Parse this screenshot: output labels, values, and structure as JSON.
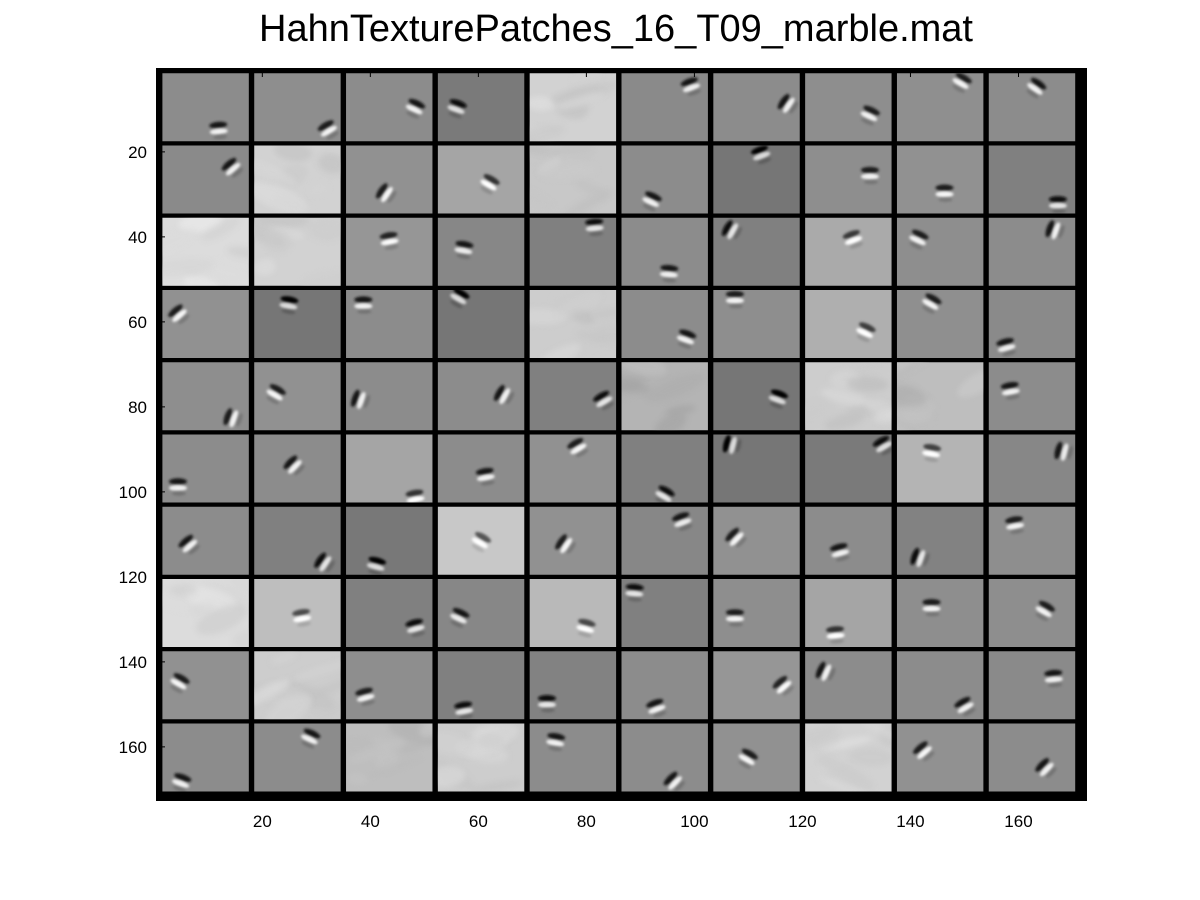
{
  "title": "HahnTexturePatches_16_T09_marble.mat",
  "chart_data": {
    "type": "heatmap",
    "title": "HahnTexturePatches_16_T09_marble.mat",
    "xlabel": "",
    "ylabel": "",
    "xlim": [
      0.5,
      172.5
    ],
    "ylim": [
      0.5,
      172.5
    ],
    "y_reversed": true,
    "x_ticks": [
      20,
      40,
      60,
      80,
      100,
      120,
      140,
      160
    ],
    "y_ticks": [
      20,
      40,
      60,
      80,
      100,
      120,
      140,
      160
    ],
    "colormap": "gray",
    "grid": {
      "rows": 10,
      "cols": 10,
      "patch_size": 16,
      "separator_px": 1,
      "separator_color": "#000000"
    },
    "patches": [
      [
        {
          "bg": 140,
          "kind": "blob",
          "x": 0.65,
          "y": 0.82,
          "angle": -5
        },
        {
          "bg": 142,
          "kind": "blob",
          "x": 0.85,
          "y": 0.82,
          "angle": -30
        },
        {
          "bg": 140,
          "kind": "blob",
          "x": 0.8,
          "y": 0.5,
          "angle": 25
        },
        {
          "bg": 122,
          "kind": "blob",
          "x": 0.22,
          "y": 0.5,
          "angle": 20
        },
        {
          "bg": 210,
          "kind": "texture",
          "x": 0.5,
          "y": 0.5,
          "angle": 0
        },
        {
          "bg": 138,
          "kind": "blob",
          "x": 0.8,
          "y": 0.18,
          "angle": -20
        },
        {
          "bg": 140,
          "kind": "blob",
          "x": 0.85,
          "y": 0.45,
          "angle": -55
        },
        {
          "bg": 142,
          "kind": "blob",
          "x": 0.75,
          "y": 0.6,
          "angle": 25
        },
        {
          "bg": 143,
          "kind": "blob",
          "x": 0.75,
          "y": 0.12,
          "angle": 30
        },
        {
          "bg": 140,
          "kind": "blob",
          "x": 0.55,
          "y": 0.2,
          "angle": 35
        }
      ],
      [
        {
          "bg": 138,
          "kind": "blob",
          "x": 0.8,
          "y": 0.32,
          "angle": -40
        },
        {
          "bg": 210,
          "kind": "texture",
          "x": 0.5,
          "y": 0.5,
          "angle": 0
        },
        {
          "bg": 145,
          "kind": "blob",
          "x": 0.45,
          "y": 0.7,
          "angle": -55
        },
        {
          "bg": 165,
          "kind": "blob",
          "x": 0.6,
          "y": 0.55,
          "angle": 30
        },
        {
          "bg": 200,
          "kind": "texture",
          "x": 0.5,
          "y": 0.5,
          "angle": 0
        },
        {
          "bg": 140,
          "kind": "blob",
          "x": 0.35,
          "y": 0.8,
          "angle": 25
        },
        {
          "bg": 118,
          "kind": "blob",
          "x": 0.55,
          "y": 0.12,
          "angle": -20
        },
        {
          "bg": 142,
          "kind": "blob",
          "x": 0.75,
          "y": 0.42,
          "angle": 0
        },
        {
          "bg": 145,
          "kind": "blob",
          "x": 0.55,
          "y": 0.68,
          "angle": 0
        },
        {
          "bg": 128,
          "kind": "blob",
          "x": 0.8,
          "y": 0.85,
          "angle": 0
        }
      ],
      [
        {
          "bg": 220,
          "kind": "texture",
          "x": 0.5,
          "y": 0.5,
          "angle": 0
        },
        {
          "bg": 210,
          "kind": "texture",
          "x": 0.5,
          "y": 0.5,
          "angle": 0
        },
        {
          "bg": 150,
          "kind": "blob",
          "x": 0.5,
          "y": 0.32,
          "angle": -10
        },
        {
          "bg": 135,
          "kind": "blob",
          "x": 0.3,
          "y": 0.45,
          "angle": 10
        },
        {
          "bg": 128,
          "kind": "blob",
          "x": 0.75,
          "y": 0.12,
          "angle": -5
        },
        {
          "bg": 140,
          "kind": "blob",
          "x": 0.55,
          "y": 0.8,
          "angle": 5
        },
        {
          "bg": 128,
          "kind": "blob",
          "x": 0.2,
          "y": 0.18,
          "angle": -60
        },
        {
          "bg": 170,
          "kind": "blob",
          "x": 0.55,
          "y": 0.3,
          "angle": -20
        },
        {
          "bg": 142,
          "kind": "blob",
          "x": 0.25,
          "y": 0.3,
          "angle": 25
        },
        {
          "bg": 140,
          "kind": "blob",
          "x": 0.75,
          "y": 0.18,
          "angle": -70
        }
      ],
      [
        {
          "bg": 145,
          "kind": "blob",
          "x": 0.18,
          "y": 0.35,
          "angle": -40
        },
        {
          "bg": 118,
          "kind": "blob",
          "x": 0.4,
          "y": 0.2,
          "angle": 10
        },
        {
          "bg": 140,
          "kind": "blob",
          "x": 0.2,
          "y": 0.2,
          "angle": 0
        },
        {
          "bg": 118,
          "kind": "blob",
          "x": 0.25,
          "y": 0.1,
          "angle": 30
        },
        {
          "bg": 205,
          "kind": "texture",
          "x": 0.5,
          "y": 0.5,
          "angle": 0
        },
        {
          "bg": 140,
          "kind": "blob",
          "x": 0.75,
          "y": 0.7,
          "angle": 20
        },
        {
          "bg": 142,
          "kind": "blob",
          "x": 0.25,
          "y": 0.12,
          "angle": 0
        },
        {
          "bg": 175,
          "kind": "blob",
          "x": 0.7,
          "y": 0.6,
          "angle": 25
        },
        {
          "bg": 143,
          "kind": "blob",
          "x": 0.4,
          "y": 0.18,
          "angle": 30
        },
        {
          "bg": 138,
          "kind": "blob",
          "x": 0.2,
          "y": 0.82,
          "angle": -15
        }
      ],
      [
        {
          "bg": 142,
          "kind": "blob",
          "x": 0.8,
          "y": 0.82,
          "angle": -70
        },
        {
          "bg": 145,
          "kind": "blob",
          "x": 0.25,
          "y": 0.45,
          "angle": 30
        },
        {
          "bg": 140,
          "kind": "blob",
          "x": 0.15,
          "y": 0.55,
          "angle": -70
        },
        {
          "bg": 140,
          "kind": "blob",
          "x": 0.75,
          "y": 0.48,
          "angle": -60
        },
        {
          "bg": 128,
          "kind": "blob",
          "x": 0.85,
          "y": 0.55,
          "angle": -30
        },
        {
          "bg": 180,
          "kind": "texture",
          "x": 0.5,
          "y": 0.5,
          "angle": -60
        },
        {
          "bg": 118,
          "kind": "blob",
          "x": 0.75,
          "y": 0.52,
          "angle": 20
        },
        {
          "bg": 205,
          "kind": "texture",
          "x": 0.5,
          "y": 0.5,
          "angle": 0
        },
        {
          "bg": 190,
          "kind": "texture",
          "x": 0.5,
          "y": 0.5,
          "angle": 0
        },
        {
          "bg": 140,
          "kind": "blob",
          "x": 0.25,
          "y": 0.4,
          "angle": -10
        }
      ],
      [
        {
          "bg": 140,
          "kind": "blob",
          "x": 0.18,
          "y": 0.75,
          "angle": 0
        },
        {
          "bg": 140,
          "kind": "blob",
          "x": 0.45,
          "y": 0.45,
          "angle": -45
        },
        {
          "bg": 165,
          "kind": "blob",
          "x": 0.8,
          "y": 0.92,
          "angle": -10
        },
        {
          "bg": 140,
          "kind": "blob",
          "x": 0.55,
          "y": 0.6,
          "angle": -10
        },
        {
          "bg": 145,
          "kind": "blob",
          "x": 0.55,
          "y": 0.18,
          "angle": -30
        },
        {
          "bg": 128,
          "kind": "blob",
          "x": 0.5,
          "y": 0.88,
          "angle": 30
        },
        {
          "bg": 118,
          "kind": "blob",
          "x": 0.2,
          "y": 0.15,
          "angle": -75
        },
        {
          "bg": 122,
          "kind": "blob",
          "x": 0.9,
          "y": 0.15,
          "angle": -30
        },
        {
          "bg": 180,
          "kind": "blob",
          "x": 0.4,
          "y": 0.25,
          "angle": 10
        },
        {
          "bg": 135,
          "kind": "blob",
          "x": 0.85,
          "y": 0.25,
          "angle": -75
        }
      ],
      [
        {
          "bg": 140,
          "kind": "blob",
          "x": 0.3,
          "y": 0.55,
          "angle": -40
        },
        {
          "bg": 128,
          "kind": "blob",
          "x": 0.8,
          "y": 0.82,
          "angle": -55
        },
        {
          "bg": 120,
          "kind": "blob",
          "x": 0.35,
          "y": 0.85,
          "angle": 15
        },
        {
          "bg": 200,
          "kind": "blob",
          "x": 0.5,
          "y": 0.5,
          "angle": 30
        },
        {
          "bg": 145,
          "kind": "blob",
          "x": 0.4,
          "y": 0.55,
          "angle": -55
        },
        {
          "bg": 135,
          "kind": "blob",
          "x": 0.7,
          "y": 0.2,
          "angle": -20
        },
        {
          "bg": 145,
          "kind": "blob",
          "x": 0.25,
          "y": 0.45,
          "angle": -45
        },
        {
          "bg": 140,
          "kind": "blob",
          "x": 0.4,
          "y": 0.65,
          "angle": -15
        },
        {
          "bg": 130,
          "kind": "blob",
          "x": 0.25,
          "y": 0.75,
          "angle": -70
        },
        {
          "bg": 142,
          "kind": "blob",
          "x": 0.3,
          "y": 0.25,
          "angle": -10
        }
      ],
      [
        {
          "bg": 220,
          "kind": "texture",
          "x": 0.5,
          "y": 0.5,
          "angle": 0
        },
        {
          "bg": 190,
          "kind": "blob",
          "x": 0.55,
          "y": 0.55,
          "angle": -10
        },
        {
          "bg": 128,
          "kind": "blob",
          "x": 0.8,
          "y": 0.7,
          "angle": -15
        },
        {
          "bg": 135,
          "kind": "blob",
          "x": 0.25,
          "y": 0.55,
          "angle": 25
        },
        {
          "bg": 185,
          "kind": "blob",
          "x": 0.65,
          "y": 0.7,
          "angle": 15
        },
        {
          "bg": 128,
          "kind": "blob",
          "x": 0.15,
          "y": 0.18,
          "angle": 5
        },
        {
          "bg": 142,
          "kind": "blob",
          "x": 0.25,
          "y": 0.55,
          "angle": 0
        },
        {
          "bg": 165,
          "kind": "blob",
          "x": 0.35,
          "y": 0.8,
          "angle": -5
        },
        {
          "bg": 142,
          "kind": "blob",
          "x": 0.4,
          "y": 0.4,
          "angle": 0
        },
        {
          "bg": 142,
          "kind": "blob",
          "x": 0.65,
          "y": 0.45,
          "angle": 30
        }
      ],
      [
        {
          "bg": 145,
          "kind": "blob",
          "x": 0.2,
          "y": 0.45,
          "angle": 30
        },
        {
          "bg": 205,
          "kind": "texture",
          "x": 0.5,
          "y": 0.5,
          "angle": 0
        },
        {
          "bg": 142,
          "kind": "blob",
          "x": 0.22,
          "y": 0.65,
          "angle": -15
        },
        {
          "bg": 128,
          "kind": "blob",
          "x": 0.3,
          "y": 0.85,
          "angle": -10
        },
        {
          "bg": 130,
          "kind": "blob",
          "x": 0.2,
          "y": 0.75,
          "angle": 0
        },
        {
          "bg": 140,
          "kind": "blob",
          "x": 0.4,
          "y": 0.82,
          "angle": -20
        },
        {
          "bg": 150,
          "kind": "blob",
          "x": 0.8,
          "y": 0.5,
          "angle": -40
        },
        {
          "bg": 140,
          "kind": "blob",
          "x": 0.22,
          "y": 0.3,
          "angle": -65
        },
        {
          "bg": 140,
          "kind": "blob",
          "x": 0.78,
          "y": 0.8,
          "angle": -30
        },
        {
          "bg": 138,
          "kind": "blob",
          "x": 0.75,
          "y": 0.38,
          "angle": -5
        }
      ],
      [
        {
          "bg": 140,
          "kind": "blob",
          "x": 0.22,
          "y": 0.85,
          "angle": 20
        },
        {
          "bg": 140,
          "kind": "blob",
          "x": 0.65,
          "y": 0.2,
          "angle": 25
        },
        {
          "bg": 190,
          "kind": "texture",
          "x": 0.5,
          "y": 0.5,
          "angle": 0
        },
        {
          "bg": 205,
          "kind": "texture",
          "x": 0.5,
          "y": 0.5,
          "angle": 0
        },
        {
          "bg": 140,
          "kind": "blob",
          "x": 0.3,
          "y": 0.25,
          "angle": 10
        },
        {
          "bg": 140,
          "kind": "blob",
          "x": 0.6,
          "y": 0.85,
          "angle": -45
        },
        {
          "bg": 145,
          "kind": "blob",
          "x": 0.4,
          "y": 0.5,
          "angle": 30
        },
        {
          "bg": 210,
          "kind": "texture",
          "x": 0.5,
          "y": 0.5,
          "angle": 0
        },
        {
          "bg": 145,
          "kind": "blob",
          "x": 0.3,
          "y": 0.4,
          "angle": -40
        },
        {
          "bg": 140,
          "kind": "blob",
          "x": 0.65,
          "y": 0.65,
          "angle": -45
        }
      ]
    ]
  }
}
